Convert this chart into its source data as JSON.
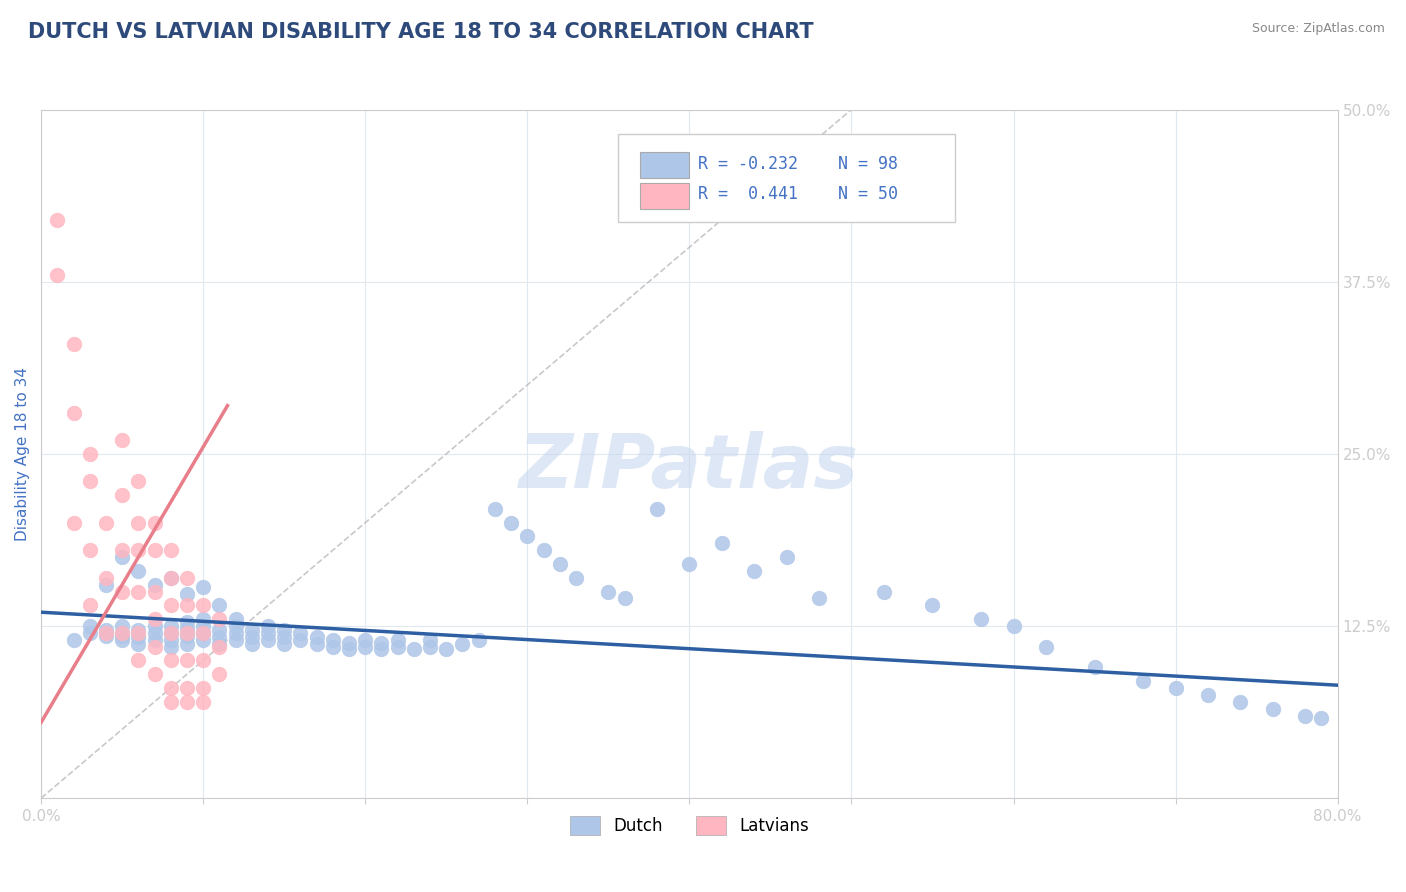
{
  "title": "DUTCH VS LATVIAN DISABILITY AGE 18 TO 34 CORRELATION CHART",
  "source_text": "Source: ZipAtlas.com",
  "ylabel": "Disability Age 18 to 34",
  "xlim": [
    0.0,
    0.8
  ],
  "ylim": [
    0.0,
    0.5
  ],
  "xticks": [
    0.0,
    0.1,
    0.2,
    0.3,
    0.4,
    0.5,
    0.6,
    0.7,
    0.8
  ],
  "xticklabels": [
    "0.0%",
    "",
    "",
    "",
    "",
    "",
    "",
    "",
    "80.0%"
  ],
  "yticks": [
    0.0,
    0.125,
    0.25,
    0.375,
    0.5
  ],
  "yticklabels": [
    "",
    "12.5%",
    "25.0%",
    "37.5%",
    "50.0%"
  ],
  "title_color": "#2E4A7A",
  "title_fontsize": 15,
  "axis_color": "#4472C4",
  "tick_color": "#4472C4",
  "dutch_color": "#AEC6E8",
  "latvian_color": "#FFB6C1",
  "dutch_line_color": "#2E5FA3",
  "latvian_line_color": "#E87E8A",
  "watermark": "ZIPatlas",
  "watermark_color": "#C8D8F0",
  "dutch_scatter_x": [
    0.02,
    0.03,
    0.03,
    0.04,
    0.04,
    0.05,
    0.05,
    0.05,
    0.05,
    0.06,
    0.06,
    0.06,
    0.07,
    0.07,
    0.07,
    0.08,
    0.08,
    0.08,
    0.08,
    0.09,
    0.09,
    0.09,
    0.09,
    0.1,
    0.1,
    0.1,
    0.1,
    0.11,
    0.11,
    0.11,
    0.12,
    0.12,
    0.12,
    0.12,
    0.13,
    0.13,
    0.13,
    0.14,
    0.14,
    0.14,
    0.15,
    0.15,
    0.15,
    0.16,
    0.16,
    0.17,
    0.17,
    0.18,
    0.18,
    0.19,
    0.19,
    0.2,
    0.2,
    0.21,
    0.21,
    0.22,
    0.22,
    0.23,
    0.24,
    0.24,
    0.25,
    0.26,
    0.27,
    0.28,
    0.29,
    0.3,
    0.31,
    0.32,
    0.33,
    0.35,
    0.36,
    0.38,
    0.4,
    0.42,
    0.44,
    0.46,
    0.48,
    0.52,
    0.55,
    0.58,
    0.6,
    0.62,
    0.65,
    0.68,
    0.7,
    0.72,
    0.74,
    0.76,
    0.78,
    0.79,
    0.04,
    0.05,
    0.06,
    0.07,
    0.08,
    0.09,
    0.1,
    0.11
  ],
  "dutch_scatter_y": [
    0.115,
    0.12,
    0.125,
    0.118,
    0.122,
    0.115,
    0.12,
    0.125,
    0.118,
    0.112,
    0.117,
    0.122,
    0.115,
    0.12,
    0.125,
    0.11,
    0.115,
    0.12,
    0.125,
    0.112,
    0.118,
    0.123,
    0.128,
    0.115,
    0.12,
    0.125,
    0.13,
    0.112,
    0.117,
    0.122,
    0.115,
    0.12,
    0.125,
    0.13,
    0.112,
    0.117,
    0.122,
    0.115,
    0.12,
    0.125,
    0.112,
    0.117,
    0.122,
    0.115,
    0.12,
    0.112,
    0.117,
    0.11,
    0.115,
    0.108,
    0.113,
    0.11,
    0.115,
    0.108,
    0.113,
    0.11,
    0.115,
    0.108,
    0.11,
    0.115,
    0.108,
    0.112,
    0.115,
    0.21,
    0.2,
    0.19,
    0.18,
    0.17,
    0.16,
    0.15,
    0.145,
    0.21,
    0.17,
    0.185,
    0.165,
    0.175,
    0.145,
    0.15,
    0.14,
    0.13,
    0.125,
    0.11,
    0.095,
    0.085,
    0.08,
    0.075,
    0.07,
    0.065,
    0.06,
    0.058,
    0.155,
    0.175,
    0.165,
    0.155,
    0.16,
    0.148,
    0.153,
    0.14
  ],
  "latvian_scatter_x": [
    0.01,
    0.01,
    0.02,
    0.02,
    0.02,
    0.03,
    0.03,
    0.03,
    0.03,
    0.04,
    0.04,
    0.04,
    0.05,
    0.05,
    0.05,
    0.05,
    0.05,
    0.06,
    0.06,
    0.06,
    0.06,
    0.06,
    0.06,
    0.07,
    0.07,
    0.07,
    0.07,
    0.07,
    0.07,
    0.08,
    0.08,
    0.08,
    0.08,
    0.08,
    0.08,
    0.08,
    0.09,
    0.09,
    0.09,
    0.09,
    0.09,
    0.09,
    0.1,
    0.1,
    0.1,
    0.1,
    0.1,
    0.11,
    0.11,
    0.11
  ],
  "latvian_scatter_y": [
    0.42,
    0.38,
    0.33,
    0.28,
    0.2,
    0.25,
    0.23,
    0.18,
    0.14,
    0.2,
    0.16,
    0.12,
    0.26,
    0.22,
    0.18,
    0.15,
    0.12,
    0.23,
    0.2,
    0.18,
    0.15,
    0.12,
    0.1,
    0.2,
    0.18,
    0.15,
    0.13,
    0.11,
    0.09,
    0.18,
    0.16,
    0.14,
    0.12,
    0.1,
    0.08,
    0.07,
    0.16,
    0.14,
    0.12,
    0.1,
    0.08,
    0.07,
    0.14,
    0.12,
    0.1,
    0.08,
    0.07,
    0.13,
    0.11,
    0.09
  ],
  "dutch_trend_x": [
    0.0,
    0.8
  ],
  "dutch_trend_y": [
    0.135,
    0.082
  ],
  "latvian_trend_x": [
    0.0,
    0.115
  ],
  "latvian_trend_y": [
    0.055,
    0.285
  ],
  "diag_line_x": [
    0.0,
    0.5
  ],
  "diag_line_y": [
    0.0,
    0.5
  ]
}
